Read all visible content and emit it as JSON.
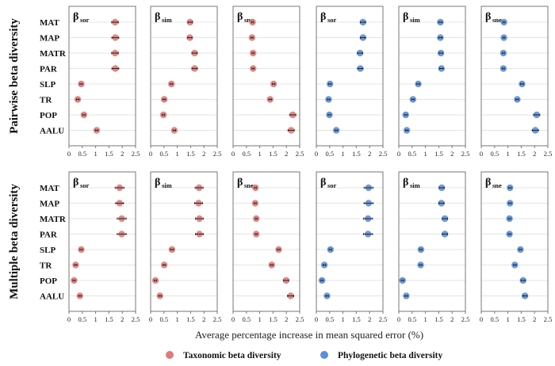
{
  "chart_data": {
    "type": "scatter",
    "subtype": "dot-plot-with-error-bars",
    "xlabel": "Average percentage increase in mean squared error (%)",
    "xlim": [
      0,
      2.5
    ],
    "xticks": [
      "0",
      "0.5",
      "1",
      "1.5",
      "2",
      "2.5"
    ],
    "grid": "horizontal",
    "legend_placement": "bottom",
    "variables": [
      "MAT",
      "MAP",
      "MATR",
      "PAR",
      "SLP",
      "TR",
      "POP",
      "AALU"
    ],
    "legend": [
      {
        "name": "Taxonomic beta diversity",
        "color": "#e07b78"
      },
      {
        "name": "Phylogenetic beta diversity",
        "color": "#5b8fd9"
      }
    ],
    "rows": [
      {
        "title": "Pairwise beta diversity",
        "panels": [
          {
            "beta": "β",
            "sub": "sor",
            "series": "Taxonomic beta diversity",
            "values": [
              1.73,
              1.74,
              1.73,
              1.74,
              0.46,
              0.33,
              0.56,
              1.04
            ],
            "err": [
              0.13,
              0.13,
              0.13,
              0.13,
              0.05,
              0.05,
              0.05,
              0.05
            ]
          },
          {
            "beta": "β",
            "sub": "sim",
            "series": "Taxonomic beta diversity",
            "values": [
              1.48,
              1.47,
              1.65,
              1.65,
              0.78,
              0.51,
              0.48,
              0.89
            ],
            "err": [
              0.08,
              0.08,
              0.1,
              0.1,
              0.05,
              0.05,
              0.05,
              0.05
            ]
          },
          {
            "beta": "β",
            "sub": "sne",
            "series": "Taxonomic beta diversity",
            "values": [
              0.73,
              0.71,
              0.75,
              0.75,
              1.52,
              1.39,
              2.24,
              2.18
            ],
            "err": [
              0.04,
              0.04,
              0.04,
              0.04,
              0.05,
              0.05,
              0.12,
              0.12
            ]
          },
          {
            "beta": "β",
            "sub": "sor",
            "series": "Phylogenetic beta diversity",
            "values": [
              1.75,
              1.75,
              1.64,
              1.65,
              0.51,
              0.46,
              0.49,
              0.75
            ],
            "err": [
              0.1,
              0.1,
              0.1,
              0.1,
              0.05,
              0.05,
              0.05,
              0.05
            ]
          },
          {
            "beta": "β",
            "sub": "sim",
            "series": "Phylogenetic beta diversity",
            "values": [
              1.56,
              1.56,
              1.58,
              1.6,
              0.73,
              0.53,
              0.26,
              0.3
            ],
            "err": [
              0.07,
              0.07,
              0.07,
              0.07,
              0.06,
              0.05,
              0.05,
              0.05
            ]
          },
          {
            "beta": "β",
            "sub": "sne",
            "series": "Phylogenetic beta diversity",
            "values": [
              0.85,
              0.85,
              0.83,
              0.83,
              1.53,
              1.35,
              2.08,
              2.03
            ],
            "err": [
              0.04,
              0.04,
              0.04,
              0.04,
              0.06,
              0.05,
              0.12,
              0.12
            ]
          }
        ]
      },
      {
        "title": "Multiple beta diversity",
        "panels": [
          {
            "beta": "β",
            "sub": "sor",
            "series": "Taxonomic beta diversity",
            "values": [
              1.9,
              1.9,
              1.98,
              1.98,
              0.46,
              0.25,
              0.19,
              0.41
            ],
            "err": [
              0.17,
              0.15,
              0.17,
              0.17,
              0.05,
              0.05,
              0.05,
              0.05
            ]
          },
          {
            "beta": "β",
            "sub": "sim",
            "series": "Taxonomic beta diversity",
            "values": [
              1.82,
              1.8,
              1.83,
              1.83,
              0.8,
              0.51,
              0.18,
              0.35
            ],
            "err": [
              0.15,
              0.15,
              0.15,
              0.15,
              0.06,
              0.05,
              0.05,
              0.05
            ]
          },
          {
            "beta": "β",
            "sub": "sne",
            "series": "Taxonomic beta diversity",
            "values": [
              0.84,
              0.83,
              0.87,
              0.87,
              1.71,
              1.45,
              1.99,
              2.16
            ],
            "err": [
              0.04,
              0.04,
              0.04,
              0.04,
              0.05,
              0.05,
              0.1,
              0.12
            ]
          },
          {
            "beta": "β",
            "sub": "sor",
            "series": "Phylogenetic beta diversity",
            "values": [
              1.96,
              1.96,
              1.94,
              1.94,
              0.53,
              0.3,
              0.21,
              0.4
            ],
            "err": [
              0.17,
              0.17,
              0.17,
              0.17,
              0.05,
              0.05,
              0.05,
              0.05
            ]
          },
          {
            "beta": "β",
            "sub": "sim",
            "series": "Phylogenetic beta diversity",
            "values": [
              1.61,
              1.6,
              1.73,
              1.73,
              0.83,
              0.82,
              0.14,
              0.28
            ],
            "err": [
              0.1,
              0.1,
              0.1,
              0.1,
              0.05,
              0.05,
              0.05,
              0.05
            ]
          },
          {
            "beta": "β",
            "sub": "sne",
            "series": "Phylogenetic beta diversity",
            "values": [
              1.08,
              1.08,
              1.06,
              1.06,
              1.47,
              1.26,
              1.57,
              1.64
            ],
            "err": [
              0.05,
              0.05,
              0.05,
              0.05,
              0.05,
              0.05,
              0.08,
              0.08
            ]
          }
        ]
      }
    ]
  }
}
